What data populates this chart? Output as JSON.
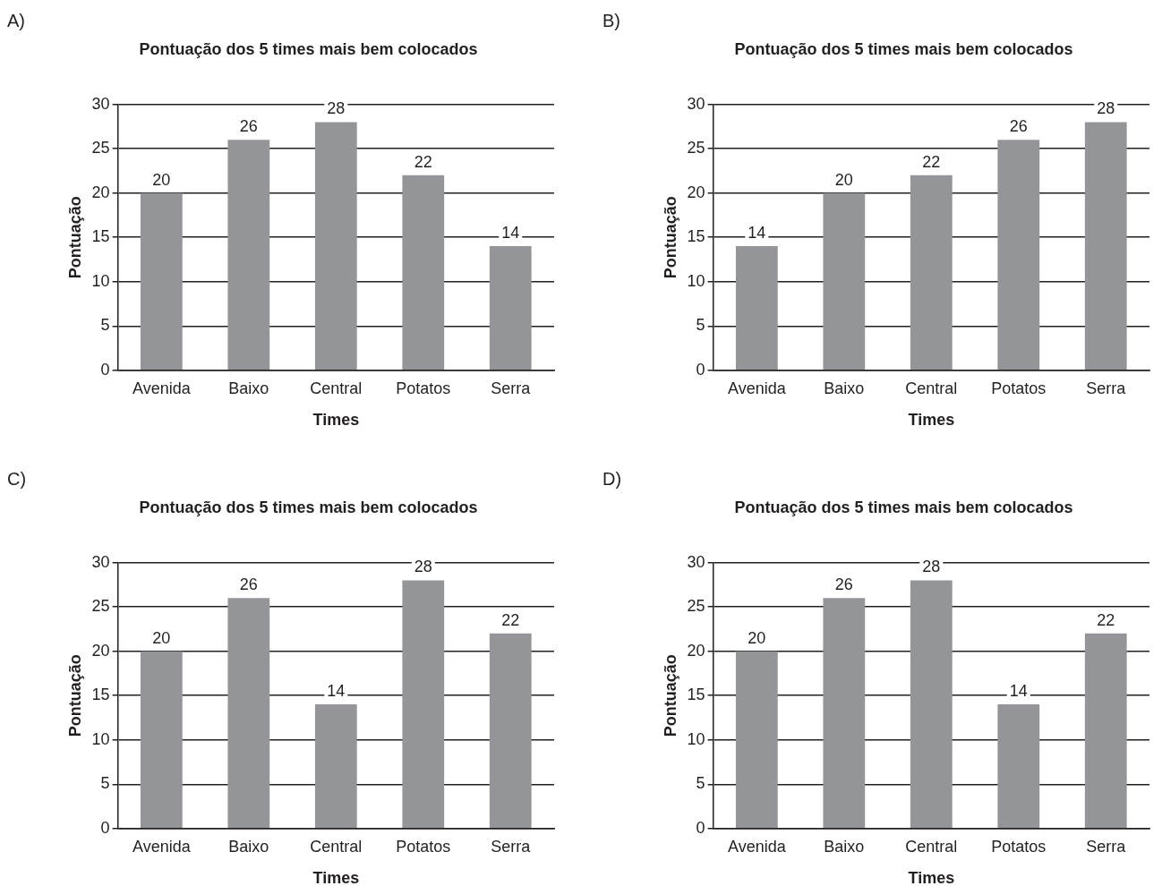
{
  "chart_data": [
    {
      "type": "bar",
      "title": "Pontuação dos 5 times mais bem colocados",
      "xlabel": "Times",
      "ylabel": "Pontuação",
      "annotations": [
        "A)"
      ],
      "categories": [
        "Avenida",
        "Baixo",
        "Central",
        "Potatos",
        "Serra"
      ],
      "values": [
        20,
        26,
        28,
        22,
        14
      ],
      "color": "#939598",
      "ylim": [
        0,
        30
      ],
      "yticks": [
        0,
        5,
        10,
        15,
        20,
        25,
        30
      ],
      "grid": "y",
      "data_labels": true,
      "legend": false
    },
    {
      "type": "bar",
      "title": "Pontuação dos 5 times mais bem colocados",
      "xlabel": "Times",
      "ylabel": "Pontuação",
      "annotations": [
        "B)"
      ],
      "categories": [
        "Avenida",
        "Baixo",
        "Central",
        "Potatos",
        "Serra"
      ],
      "values": [
        14,
        20,
        22,
        26,
        28
      ],
      "color": "#939598",
      "ylim": [
        0,
        30
      ],
      "yticks": [
        0,
        5,
        10,
        15,
        20,
        25,
        30
      ],
      "grid": "y",
      "data_labels": true,
      "legend": false
    },
    {
      "type": "bar",
      "title": "Pontuação dos 5 times mais bem colocados",
      "xlabel": "Times",
      "ylabel": "Pontuação",
      "annotations": [
        "C)"
      ],
      "categories": [
        "Avenida",
        "Baixo",
        "Central",
        "Potatos",
        "Serra"
      ],
      "values": [
        20,
        26,
        14,
        28,
        22
      ],
      "color": "#939598",
      "ylim": [
        0,
        30
      ],
      "yticks": [
        0,
        5,
        10,
        15,
        20,
        25,
        30
      ],
      "grid": "y",
      "data_labels": true,
      "legend": false
    },
    {
      "type": "bar",
      "title": "Pontuação dos 5 times mais bem colocados",
      "xlabel": "Times",
      "ylabel": "Pontuação",
      "annotations": [
        "D)"
      ],
      "categories": [
        "Avenida",
        "Baixo",
        "Central",
        "Potatos",
        "Serra"
      ],
      "values": [
        20,
        26,
        28,
        14,
        22
      ],
      "color": "#939598",
      "ylim": [
        0,
        30
      ],
      "yticks": [
        0,
        5,
        10,
        15,
        20,
        25,
        30
      ],
      "grid": "y",
      "data_labels": true,
      "legend": false
    }
  ]
}
